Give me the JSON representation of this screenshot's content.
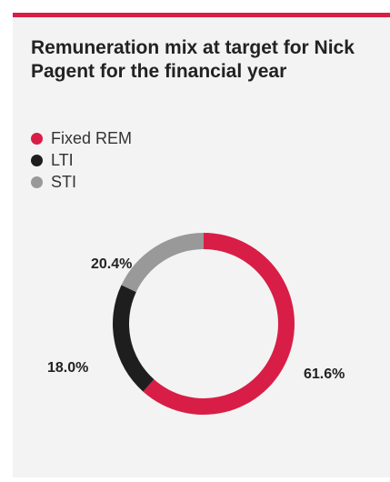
{
  "title": "Remuneration mix at target for Nick Pagent for the financial year",
  "colors": {
    "accent": "#d81e46",
    "panel": "#f3f3f3"
  },
  "chart_data": {
    "type": "pie",
    "donut": true,
    "legend_position": "top-left",
    "categories": [
      "Fixed REM",
      "LTI",
      "STI"
    ],
    "values": [
      61.6,
      20.4,
      18.0
    ],
    "labels": [
      "61.6%",
      "20.4%",
      "18.0%"
    ],
    "colors": [
      "#d81e46",
      "#1e1e1e",
      "#999999"
    ]
  }
}
